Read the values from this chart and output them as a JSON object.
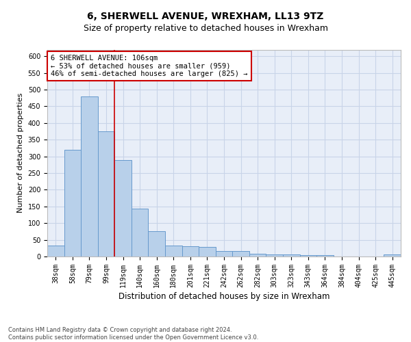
{
  "title1": "6, SHERWELL AVENUE, WREXHAM, LL13 9TZ",
  "title2": "Size of property relative to detached houses in Wrexham",
  "xlabel": "Distribution of detached houses by size in Wrexham",
  "ylabel": "Number of detached properties",
  "categories": [
    "38sqm",
    "58sqm",
    "79sqm",
    "99sqm",
    "119sqm",
    "140sqm",
    "160sqm",
    "180sqm",
    "201sqm",
    "221sqm",
    "242sqm",
    "262sqm",
    "282sqm",
    "303sqm",
    "323sqm",
    "343sqm",
    "364sqm",
    "384sqm",
    "404sqm",
    "425sqm",
    "445sqm"
  ],
  "values": [
    32,
    320,
    480,
    375,
    290,
    143,
    76,
    32,
    30,
    28,
    17,
    17,
    9,
    7,
    6,
    5,
    5,
    0,
    0,
    0,
    6
  ],
  "bar_color": "#b8d0ea",
  "bar_edge_color": "#6699cc",
  "vline_color": "#cc0000",
  "annotation_text": "6 SHERWELL AVENUE: 106sqm\n← 53% of detached houses are smaller (959)\n46% of semi-detached houses are larger (825) →",
  "annotation_box_color": "white",
  "annotation_box_edge_color": "#cc0000",
  "ylim": [
    0,
    620
  ],
  "yticks": [
    0,
    50,
    100,
    150,
    200,
    250,
    300,
    350,
    400,
    450,
    500,
    550,
    600
  ],
  "grid_color": "#c8d4e8",
  "background_color": "#e8eef8",
  "footer": "Contains HM Land Registry data © Crown copyright and database right 2024.\nContains public sector information licensed under the Open Government Licence v3.0.",
  "title1_fontsize": 10,
  "title2_fontsize": 9,
  "xlabel_fontsize": 8.5,
  "ylabel_fontsize": 8,
  "tick_fontsize": 7,
  "annotation_fontsize": 7.5,
  "footer_fontsize": 6
}
